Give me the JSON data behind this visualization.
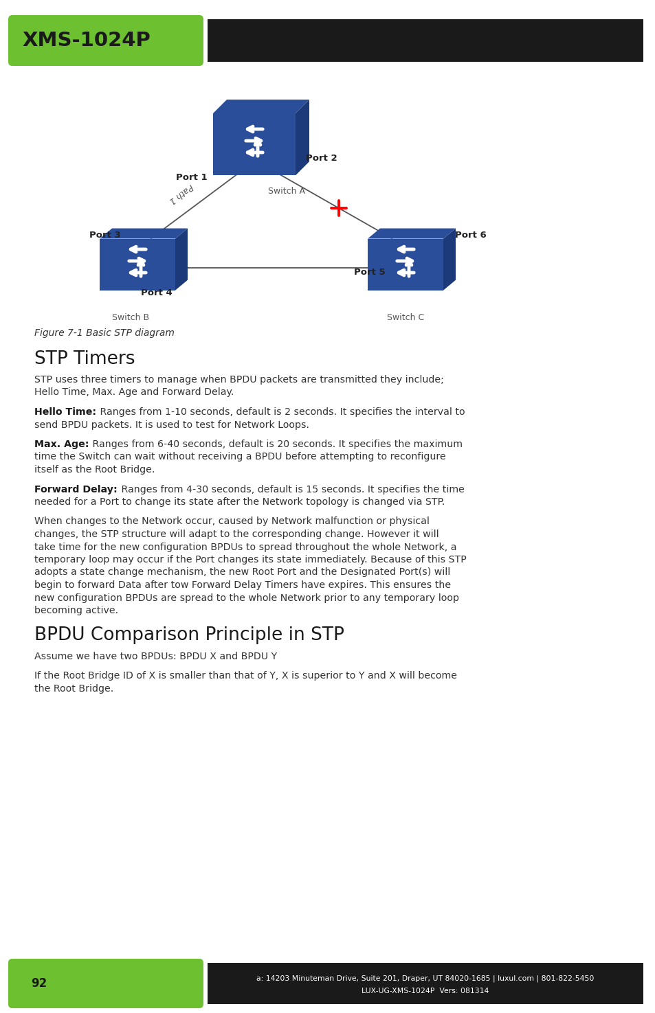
{
  "header_green_color": "#6DC030",
  "header_black_color": "#1a1a1a",
  "header_text": "XMS-1024P",
  "header_text_color": "#1a1a1a",
  "switch_color": "#2B4E9B",
  "switch_dark_color": "#1c3a7a",
  "line_color": "#555555",
  "path_label": "Path 1",
  "figure_caption": "Figure 7-1 Basic STP diagram",
  "section1_title": "STP Timers",
  "section1_body1": "STP uses three timers to manage when BPDU packets are transmitted they include;",
  "section1_body2": "Hello Time, Max. Age and Forward Delay.",
  "bold1_label": "Hello Time:",
  "bold1_rest1": " Ranges from 1-10 seconds, default is 2 seconds. It specifies the interval to",
  "bold1_rest2": "send BPDU packets. It is used to test for Network Loops.",
  "bold2_label": "Max. Age:",
  "bold2_rest1": " Ranges from 6-40 seconds, default is 20 seconds. It specifies the maximum",
  "bold2_rest2": "time the Switch can wait without receiving a BPDU before attempting to reconfigure",
  "bold2_rest3": "itself as the Root Bridge.",
  "bold3_label": "Forward Delay:",
  "bold3_rest1": " Ranges from 4-30 seconds, default is 15 seconds. It specifies the time",
  "bold3_rest2": "needed for a Port to change its state after the Network topology is changed via STP.",
  "para2_lines": [
    "When changes to the Network occur, caused by Network malfunction or physical",
    "changes, the STP structure will adapt to the corresponding change. However it will",
    "take time for the new configuration BPDUs to spread throughout the whole Network, a",
    "temporary loop may occur if the Port changes its state immediately. Because of this STP",
    "adopts a state change mechanism, the new Root Port and the Designated Port(s) will",
    "begin to forward Data after tow Forward Delay Timers have expires. This ensures the",
    "new configuration BPDUs are spread to the whole Network prior to any temporary loop",
    "becoming active."
  ],
  "section2_title": "BPDU Comparison Principle in STP",
  "section2_sub": "Assume we have two BPDUs: BPDU X and BPDU Y",
  "section2_body1": "If the Root Bridge ID of X is smaller than that of Y, X is superior to Y and X will become",
  "section2_body2": "the Root Bridge.",
  "footer_green_color": "#6DC030",
  "footer_black_color": "#1a1a1a",
  "footer_page": "92",
  "footer_address": "a: 14203 Minuteman Drive, Suite 201, Draper, UT 84020-1685 | luxul.com | 801-822-5450",
  "footer_model": "LUX-UG-XMS-1024P  Vers: 081314",
  "bg_color": "#ffffff"
}
